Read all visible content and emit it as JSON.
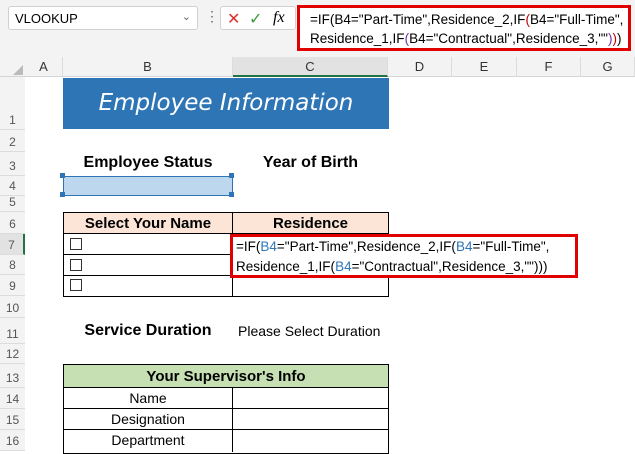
{
  "name_box": {
    "value": "VLOOKUP"
  },
  "formula_bar": {
    "cancel_icon": "x-icon",
    "enter_icon": "check-icon",
    "fx_label": "fx",
    "line1": [
      {
        "t": "=IF(",
        "c": "#000"
      },
      {
        "t": "B4=\"Part-Time\",Residence_2,IF",
        "c": "#000"
      },
      {
        "t": "(",
        "c": "#c00000"
      },
      {
        "t": "B4=\"Full-Time\",",
        "c": "#000"
      }
    ],
    "line2": [
      {
        "t": "Residence_1,IF",
        "c": "#000"
      },
      {
        "t": "(",
        "c": "#7030a0"
      },
      {
        "t": "B4=\"Contractual\",Residence_3,\"\"",
        "c": "#000"
      },
      {
        "t": ")",
        "c": "#7030a0"
      },
      {
        "t": ")",
        "c": "#c00000"
      },
      {
        "t": ")",
        "c": "#000"
      }
    ]
  },
  "columns": [
    "A",
    "B",
    "C",
    "D",
    "E",
    "F",
    "G"
  ],
  "rows": [
    "1",
    "2",
    "3",
    "4",
    "5",
    "6",
    "7",
    "8",
    "9",
    "10",
    "11",
    "12",
    "13",
    "14",
    "15",
    "16"
  ],
  "sheet": {
    "title": "Employee Information",
    "employee_status_label": "Employee Status",
    "year_of_birth_label": "Year of Birth",
    "select_name_header": "Select Your Name",
    "residence_header": "Residence",
    "cell_formula_line1": [
      {
        "t": "=IF(",
        "c": "#000"
      },
      {
        "t": "B4",
        "c": "#2f75b5"
      },
      {
        "t": "=\"Part-Time\",Residence_2,IF(",
        "c": "#000"
      },
      {
        "t": "B4",
        "c": "#2f75b5"
      },
      {
        "t": "=\"Full-Time\",",
        "c": "#000"
      }
    ],
    "cell_formula_line2": [
      {
        "t": "Residence_1,IF(",
        "c": "#000"
      },
      {
        "t": "B4",
        "c": "#2f75b5"
      },
      {
        "t": "=\"Contractual\",Residence_3,\"\")))",
        "c": "#000"
      }
    ],
    "service_duration_label": "Service Duration",
    "service_duration_value": "Please Select Duration",
    "supervisor_header": "Your Supervisor's Info",
    "supervisor_fields": [
      "Name",
      "Designation",
      "Department"
    ]
  },
  "colors": {
    "title_bg": "#2e75b6",
    "residence_header_bg": "#fce4d6",
    "supervisor_header_bg": "#c6e0b4",
    "selected_cell_bg": "#bdd7ee",
    "highlight": "#e00000"
  }
}
